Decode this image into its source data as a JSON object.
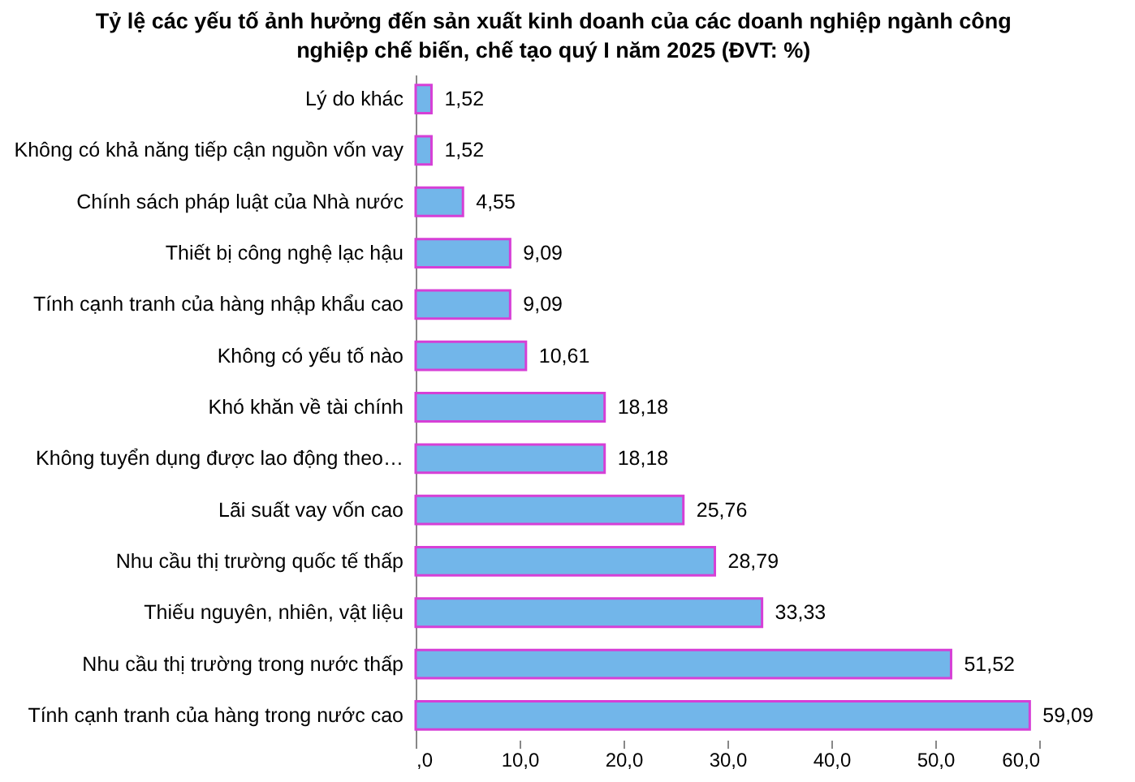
{
  "chart_data": {
    "type": "bar",
    "orientation": "horizontal",
    "title": "Tỷ lệ các yếu tố ảnh hưởng đến sản xuất kinh doanh của các doanh nghiệp ngành công nghiệp chế biến, chế tạo quý I năm 2025 (ĐVT: %)",
    "categories": [
      "Lý do khác",
      "Không có khả năng tiếp cận nguồn vốn vay",
      "Chính sách pháp luật của Nhà nước",
      "Thiết bị công nghệ lạc hậu",
      "Tính cạnh tranh của hàng nhập khẩu cao",
      "Không có yếu tố nào",
      "Khó khăn về tài chính",
      "Không tuyển dụng được lao động theo…",
      "Lãi suất vay vốn cao",
      "Nhu cầu thị trường quốc tế thấp",
      "Thiếu nguyên, nhiên, vật liệu",
      "Nhu cầu thị trường trong nước thấp",
      "Tính cạnh tranh của hàng trong nước cao"
    ],
    "values": [
      1.52,
      1.52,
      4.55,
      9.09,
      9.09,
      10.61,
      18.18,
      18.18,
      25.76,
      28.79,
      33.33,
      51.52,
      59.09
    ],
    "value_labels": [
      "1,52",
      "1,52",
      "4,55",
      "9,09",
      "9,09",
      "10,61",
      "18,18",
      "18,18",
      "25,76",
      "28,79",
      "33,33",
      "51,52",
      "59,09"
    ],
    "color": "#72b6ea",
    "xlim": [
      0,
      60
    ],
    "xticks": [
      {
        "value": 0,
        "label": ",0"
      },
      {
        "value": 10,
        "label": "10,0"
      },
      {
        "value": 20,
        "label": "20,0"
      },
      {
        "value": 30,
        "label": "30,0"
      },
      {
        "value": 40,
        "label": "40,0"
      },
      {
        "value": 50,
        "label": "50,0"
      },
      {
        "value": 60,
        "label": "60,0"
      }
    ],
    "grid": false
  }
}
